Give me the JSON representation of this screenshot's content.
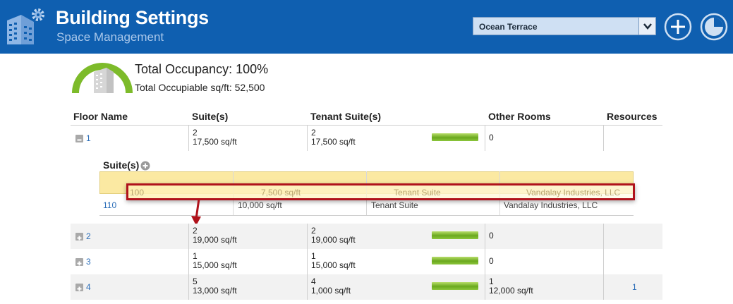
{
  "header": {
    "title": "Building Settings",
    "subtitle": "Space Management",
    "building_select": {
      "value": "Ocean Terrace"
    },
    "add_icon": "plus-circle-icon",
    "report_icon": "pie-chart-icon",
    "brand_color": "#0f5fb0"
  },
  "summary": {
    "occupancy_label": "Total Occupancy: 100%",
    "occupancy_percent": 100,
    "occupiable_label": "Total Occupiable sq/ft: 52,500"
  },
  "table": {
    "columns": [
      "Floor Name",
      "Suite(s)",
      "Tenant Suite(s)",
      "Other Rooms",
      "Resources"
    ],
    "rows": [
      {
        "floor": "1",
        "expanded": true,
        "suites": "2",
        "suites_sqft": "17,500 sq/ft",
        "tenant": "2",
        "tenant_sqft": "17,500 sq/ft",
        "tenant_fill": 1.0,
        "other": "0",
        "other_sqft": "",
        "resources": ""
      },
      {
        "floor": "2",
        "expanded": false,
        "suites": "2",
        "suites_sqft": "19,000 sq/ft",
        "tenant": "2",
        "tenant_sqft": "19,000 sq/ft",
        "tenant_fill": 1.0,
        "other": "0",
        "other_sqft": "",
        "resources": ""
      },
      {
        "floor": "3",
        "expanded": false,
        "suites": "1",
        "suites_sqft": "15,000 sq/ft",
        "tenant": "1",
        "tenant_sqft": "15,000 sq/ft",
        "tenant_fill": 1.0,
        "other": "0",
        "other_sqft": "",
        "resources": ""
      },
      {
        "floor": "4",
        "expanded": false,
        "suites": "5",
        "suites_sqft": "13,000 sq/ft",
        "tenant": "4",
        "tenant_sqft": "1,000 sq/ft",
        "tenant_fill": 1.0,
        "other": "1",
        "other_sqft": "12,000 sq/ft",
        "resources": "1"
      }
    ]
  },
  "suites_panel": {
    "title": "Suite(s)",
    "dragging_row": {
      "suite": "100",
      "sqft": "7,500 sq/ft",
      "type": "Tenant Suite",
      "tenant": "Vandalay Industries, LLC"
    },
    "rows": [
      {
        "suite": "110",
        "sqft": "10,000 sq/ft",
        "type": "Tenant Suite",
        "tenant": "Vandalay Industries, LLC"
      }
    ]
  }
}
